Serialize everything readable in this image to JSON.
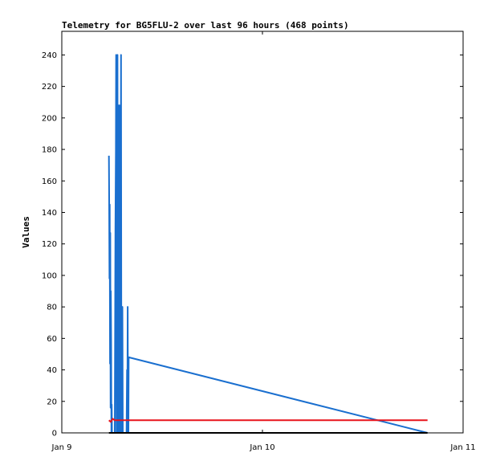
{
  "chart_data": {
    "type": "line",
    "title": "Telemetry for BG5FLU-2 over last 96 hours (468 points)",
    "xlabel": "",
    "ylabel": "Values",
    "x_ticks": [
      "Jan 9",
      "Jan 10",
      "Jan 11"
    ],
    "xlim": [
      "Jan 9",
      "Jan 11"
    ],
    "ylim": [
      0,
      255
    ],
    "y_ticks": [
      0,
      20,
      40,
      60,
      80,
      100,
      120,
      140,
      160,
      180,
      200,
      220,
      240
    ],
    "grid": false,
    "legend": "none",
    "series": [
      {
        "color": "#1a6fcf",
        "x": [
          "Jan 9 05:38",
          "Jan 9 05:40",
          "Jan 9 05:42",
          "Jan 9 05:44",
          "Jan 9 05:46",
          "Jan 9 05:48",
          "Jan 9 05:50",
          "Jan 9 05:52",
          "Jan 9 05:54",
          "Jan 9 05:56",
          "Jan 9 05:58",
          "Jan 9 06:00",
          "Jan 9 06:02",
          "Jan 9 06:04",
          "Jan 9 06:06",
          "Jan 9 06:08",
          "Jan 9 06:10",
          "Jan 9 06:12",
          "Jan 9 06:20",
          "Jan 9 06:25",
          "Jan 9 06:28",
          "Jan 9 06:30",
          "Jan 9 06:33",
          "Jan 9 06:35",
          "Jan 9 06:38",
          "Jan 9 06:40",
          "Jan 9 06:43",
          "Jan 9 06:46",
          "Jan 9 06:48",
          "Jan 9 06:50",
          "Jan 9 06:53",
          "Jan 9 06:55",
          "Jan 9 06:58",
          "Jan 9 07:00",
          "Jan 9 07:03",
          "Jan 9 07:05",
          "Jan 9 07:08",
          "Jan 9 07:10",
          "Jan 9 07:13",
          "Jan 9 07:15",
          "Jan 9 07:18",
          "Jan 9 07:20",
          "Jan 9 07:23",
          "Jan 9 07:25",
          "Jan 9 07:28",
          "Jan 9 07:30",
          "Jan 9 07:33",
          "Jan 9 07:35",
          "Jan 9 07:38",
          "Jan 9 07:40",
          "Jan 9 07:43",
          "Jan 9 07:45",
          "Jan 9 07:48",
          "Jan 9 07:50",
          "Jan 9 07:53",
          "Jan 9 07:55",
          "Jan 9 07:58",
          "Jan 9 08:00",
          "Jan 10 19:45"
        ],
        "values": [
          176,
          150,
          98,
          145,
          44,
          127,
          16,
          90,
          56,
          0,
          18,
          0,
          0,
          0,
          0,
          0,
          0,
          0,
          0,
          128,
          180,
          240,
          0,
          225,
          200,
          240,
          0,
          208,
          0,
          208,
          0,
          208,
          115,
          0,
          128,
          240,
          0,
          40,
          55,
          80,
          0,
          0,
          0,
          0,
          0,
          0,
          0,
          0,
          0,
          0,
          0,
          0,
          40,
          0,
          80,
          0,
          0,
          48,
          0
        ]
      },
      {
        "color": "#e8141c",
        "x": [
          "Jan 9 05:38",
          "Jan 9 05:52",
          "Jan 9 06:05",
          "Jan 9 06:20",
          "Jan 9 06:35",
          "Jan 9 06:50",
          "Jan 9 07:10",
          "Jan 9 07:40",
          "Jan 10 19:45"
        ],
        "values": [
          8,
          7,
          9,
          8,
          8,
          8,
          8,
          8,
          8
        ]
      },
      {
        "color": "#000000",
        "x": [
          "Jan 9 05:38",
          "Jan 10 19:45"
        ],
        "values": [
          0,
          0
        ]
      }
    ]
  }
}
